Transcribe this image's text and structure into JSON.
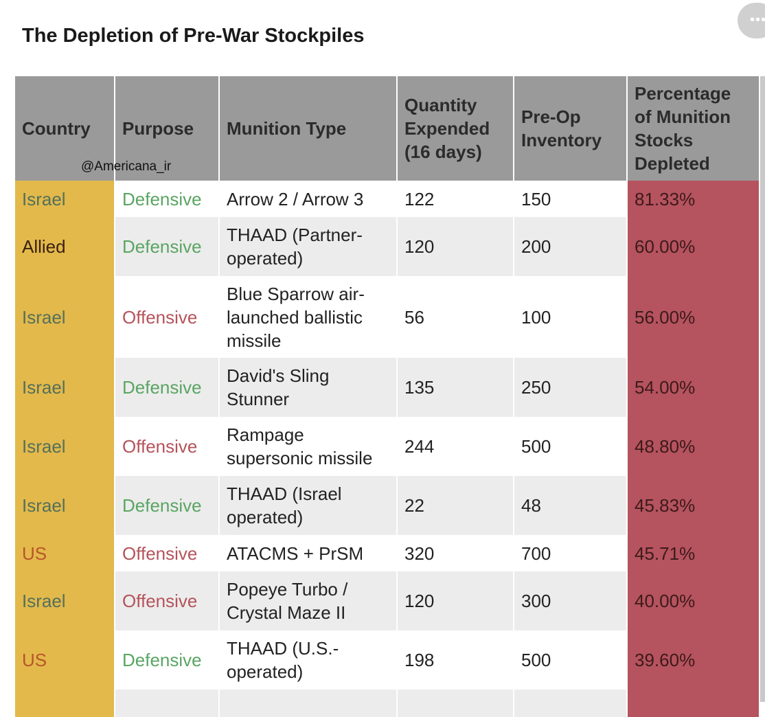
{
  "header": {
    "title": "The Depletion of Pre-War Stockpiles",
    "watermark": "@Americana_ir"
  },
  "table": {
    "columns": [
      "Country",
      "Purpose",
      "Munition Type",
      "Quantity Expended (16 days)",
      "Pre-Op Inventory",
      "Percentage of Munition Stocks Depleted"
    ],
    "rows": [
      {
        "cells": [
          "Israel",
          "Defensive",
          "Arrow 2 / Arrow 3",
          "122",
          "150",
          "81.33%"
        ],
        "country_color": "#55705a",
        "purpose_color": "#5aa563"
      },
      {
        "cells": [
          "Allied",
          "Defensive",
          "THAAD (Partner-operated)",
          "120",
          "200",
          "60.00%"
        ],
        "country_color": "#3b2010",
        "purpose_color": "#5aa563"
      },
      {
        "cells": [
          "Israel",
          "Offensive",
          "Blue Sparrow air-launched ballistic missile",
          "56",
          "100",
          "56.00%"
        ],
        "country_color": "#55705a",
        "purpose_color": "#b5535b"
      },
      {
        "cells": [
          "Israel",
          "Defensive",
          "David's Sling Stunner",
          "135",
          "250",
          "54.00%"
        ],
        "country_color": "#55705a",
        "purpose_color": "#5aa563"
      },
      {
        "cells": [
          "Israel",
          "Offensive",
          "Rampage supersonic missile",
          "244",
          "500",
          "48.80%"
        ],
        "country_color": "#55705a",
        "purpose_color": "#b5535b"
      },
      {
        "cells": [
          "Israel",
          "Defensive",
          "THAAD (Israel operated)",
          "22",
          "48",
          "45.83%"
        ],
        "country_color": "#55705a",
        "purpose_color": "#5aa563"
      },
      {
        "cells": [
          "US",
          "Offensive",
          "ATACMS + PrSM",
          "320",
          "700",
          "45.71%"
        ],
        "country_color": "#b8552b",
        "purpose_color": "#b5535b"
      },
      {
        "cells": [
          "Israel",
          "Offensive",
          "Popeye Turbo / Crystal Maze II",
          "120",
          "300",
          "40.00%"
        ],
        "country_color": "#55705a",
        "purpose_color": "#b5535b"
      },
      {
        "cells": [
          "US",
          "Defensive",
          "THAAD (U.S.-operated)",
          "198",
          "500",
          "39.60%"
        ],
        "country_color": "#b8552b",
        "purpose_color": "#5aa563"
      }
    ]
  }
}
